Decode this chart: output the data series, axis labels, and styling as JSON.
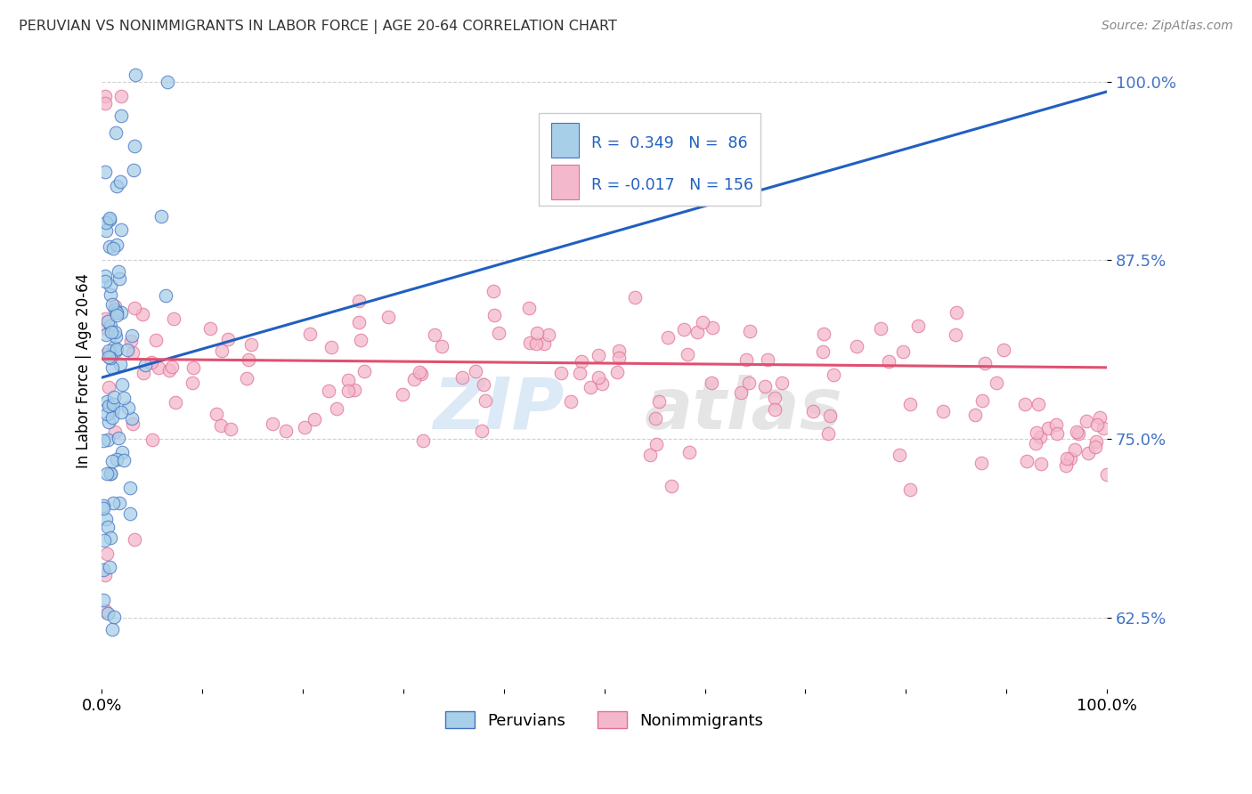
{
  "title": "PERUVIAN VS NONIMMIGRANTS IN LABOR FORCE | AGE 20-64 CORRELATION CHART",
  "source": "Source: ZipAtlas.com",
  "ylabel": "In Labor Force | Age 20-64",
  "xlim": [
    0,
    1.0
  ],
  "ylim": [
    0.575,
    1.02
  ],
  "yticks": [
    0.625,
    0.75,
    0.875,
    1.0
  ],
  "blue_R": 0.349,
  "blue_N": 86,
  "pink_R": -0.017,
  "pink_N": 156,
  "blue_fill": "#a8cfe8",
  "blue_edge": "#4472c4",
  "pink_fill": "#f4b8cc",
  "pink_edge": "#e07090",
  "trendline_blue": "#2060c0",
  "trendline_pink": "#e05070",
  "grid_color": "#cccccc",
  "title_color": "#333333",
  "ytick_color": "#4472c4",
  "watermark_zip_color": "#c0d8f0",
  "watermark_atlas_color": "#d0d0d0"
}
